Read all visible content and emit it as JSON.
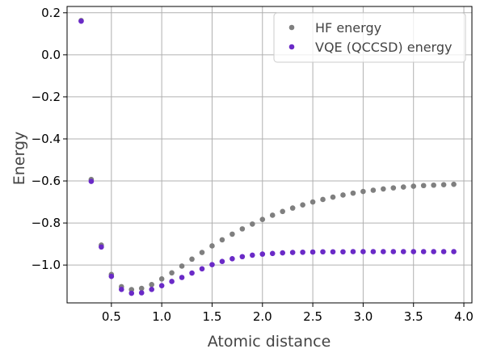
{
  "chart_data": {
    "type": "scatter",
    "xlabel": "Atomic distance",
    "ylabel": "Energy",
    "xlim": [
      0.06,
      4.08
    ],
    "ylim": [
      -1.18,
      0.23
    ],
    "xticks": [
      0.5,
      1.0,
      1.5,
      2.0,
      2.5,
      3.0,
      3.5,
      4.0
    ],
    "xtick_labels": [
      "0.5",
      "1.0",
      "1.5",
      "2.0",
      "2.5",
      "3.0",
      "3.5",
      "4.0"
    ],
    "yticks": [
      0.2,
      0.0,
      -0.2,
      -0.4,
      -0.6,
      -0.8,
      -1.0
    ],
    "ytick_labels": [
      "0.2",
      "0.0",
      "−0.2",
      "−0.4",
      "−0.6",
      "−0.8",
      "−1.0"
    ],
    "grid": true,
    "legend_position": "top-right",
    "x": [
      0.2,
      0.3,
      0.4,
      0.5,
      0.6,
      0.7,
      0.8,
      0.9,
      1.0,
      1.1,
      1.2,
      1.3,
      1.4,
      1.5,
      1.6,
      1.7,
      1.8,
      1.9,
      2.0,
      2.1,
      2.2,
      2.3,
      2.4,
      2.5,
      2.6,
      2.7,
      2.8,
      2.9,
      3.0,
      3.1,
      3.2,
      3.3,
      3.4,
      3.5,
      3.6,
      3.7,
      3.8,
      3.9
    ],
    "series": [
      {
        "name": "HF energy",
        "color": "#7f7f7f",
        "values": [
          0.163,
          -0.593,
          -0.905,
          -1.045,
          -1.103,
          -1.117,
          -1.111,
          -1.093,
          -1.066,
          -1.037,
          -1.005,
          -0.972,
          -0.94,
          -0.909,
          -0.88,
          -0.853,
          -0.828,
          -0.805,
          -0.783,
          -0.763,
          -0.745,
          -0.729,
          -0.714,
          -0.7,
          -0.688,
          -0.677,
          -0.667,
          -0.658,
          -0.65,
          -0.644,
          -0.638,
          -0.633,
          -0.629,
          -0.625,
          -0.622,
          -0.62,
          -0.618,
          -0.616
        ]
      },
      {
        "name": "VQE (QCCSD) energy",
        "color": "#6a2ac7",
        "values": [
          0.16,
          -0.602,
          -0.914,
          -1.054,
          -1.116,
          -1.134,
          -1.132,
          -1.116,
          -1.098,
          -1.078,
          -1.059,
          -1.038,
          -1.018,
          -0.998,
          -0.983,
          -0.97,
          -0.96,
          -0.953,
          -0.948,
          -0.945,
          -0.942,
          -0.94,
          -0.939,
          -0.938,
          -0.937,
          -0.937,
          -0.937,
          -0.936,
          -0.936,
          -0.936,
          -0.936,
          -0.936,
          -0.936,
          -0.936,
          -0.936,
          -0.936,
          -0.936,
          -0.936
        ]
      }
    ]
  }
}
